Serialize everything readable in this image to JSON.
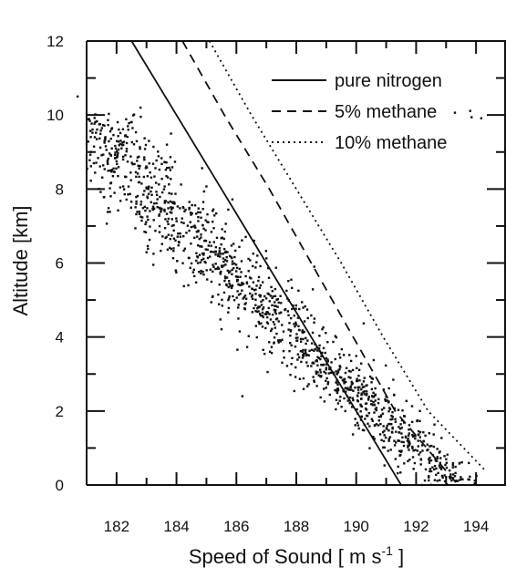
{
  "chart_data": {
    "type": "scatter",
    "xlabel_main": "Speed of Sound [ m s",
    "xlabel_sup": "-1",
    "xlabel_end": " ]",
    "ylabel": "Altitude [km]",
    "xlim": [
      181,
      195
    ],
    "ylim": [
      0,
      12
    ],
    "x_ticks": [
      182,
      184,
      186,
      188,
      190,
      192,
      194
    ],
    "y_ticks": [
      0,
      2,
      4,
      6,
      8,
      10,
      12
    ],
    "legend_position": "top-right",
    "series": [
      {
        "name": "pure nitrogen",
        "style": "solid",
        "points": [
          [
            182.5,
            12
          ],
          [
            184.0,
            10
          ],
          [
            185.5,
            8
          ],
          [
            187.0,
            6
          ],
          [
            188.5,
            4
          ],
          [
            190.0,
            2
          ],
          [
            191.5,
            0
          ]
        ]
      },
      {
        "name": "5% methane",
        "style": "dashed",
        "points": [
          [
            184.2,
            12
          ],
          [
            185.6,
            10
          ],
          [
            187.1,
            8
          ],
          [
            188.5,
            6
          ],
          [
            189.9,
            4
          ],
          [
            191.3,
            2
          ],
          [
            193.4,
            0
          ]
        ]
      },
      {
        "name": "10% methane",
        "style": "dotted",
        "points": [
          [
            185.1,
            12
          ],
          [
            186.5,
            10
          ],
          [
            188.0,
            8
          ],
          [
            189.5,
            6
          ],
          [
            190.9,
            4
          ],
          [
            192.4,
            2
          ],
          [
            194.3,
            0.4
          ]
        ]
      }
    ],
    "observations": {
      "name": "",
      "trend": [
        [
          181.0,
          10.0
        ],
        [
          182.0,
          9.0
        ],
        [
          184.0,
          7.0
        ],
        [
          186.0,
          5.5
        ],
        [
          188.0,
          4.0
        ],
        [
          190.0,
          2.5
        ],
        [
          192.0,
          1.0
        ],
        [
          193.0,
          0.2
        ]
      ],
      "spread_x": 1.0,
      "count": 1400,
      "outliers": [
        [
          180.7,
          10.5
        ],
        [
          182.8,
          10.2
        ],
        [
          186.2,
          2.4
        ],
        [
          188.6,
          5.9
        ]
      ]
    },
    "colors": {
      "line": "#111111",
      "points": "#111111",
      "background": "#ffffff"
    }
  }
}
